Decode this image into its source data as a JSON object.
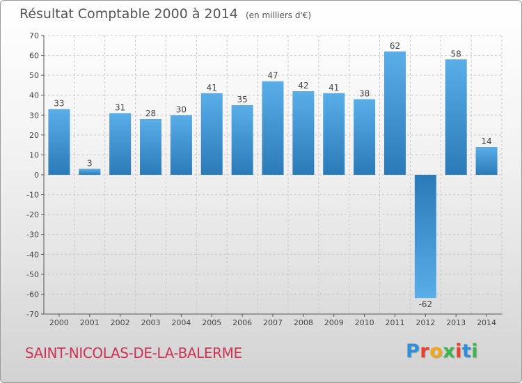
{
  "header": {
    "title": "Résultat Comptable 2000 à 2014",
    "unit": "(en milliers d'€)"
  },
  "footer": {
    "commune": "SAINT-NICOLAS-DE-LA-BALERME",
    "brand": "Proxiti",
    "brand_colors": [
      "#2f8fd8",
      "#e8402a",
      "#f0a818",
      "#3cb54a",
      "#e8402a",
      "#2f8fd8",
      "#3cb54a"
    ]
  },
  "chart_data": {
    "type": "bar",
    "title": "Résultat Comptable 2000 à 2014",
    "xlabel": "",
    "ylabel": "",
    "categories": [
      "2000",
      "2001",
      "2002",
      "2003",
      "2004",
      "2005",
      "2006",
      "2007",
      "2008",
      "2009",
      "2010",
      "2011",
      "2012",
      "2013",
      "2014"
    ],
    "values": [
      33,
      3,
      31,
      28,
      30,
      41,
      35,
      47,
      42,
      41,
      38,
      62,
      -62,
      58,
      14
    ],
    "ylim": [
      -70,
      70
    ],
    "yticks": [
      70,
      60,
      50,
      40,
      30,
      20,
      10,
      0,
      -10,
      -20,
      -30,
      -40,
      -50,
      -60,
      -70
    ],
    "grid": true,
    "colors": {
      "bar_light": "#5aaee8",
      "bar_dark": "#2a7ab8",
      "grid": "#c8c8c8",
      "axis": "#555555"
    }
  }
}
